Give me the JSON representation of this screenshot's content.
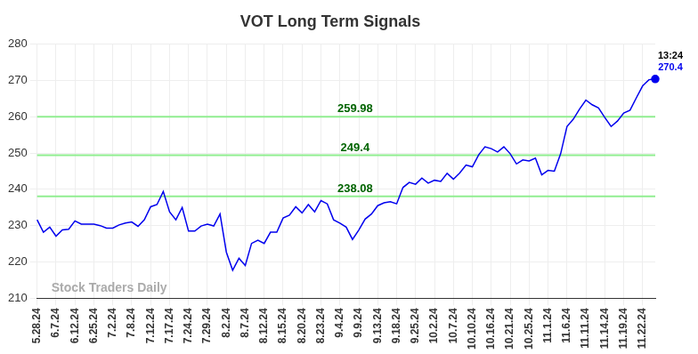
{
  "chart_data": {
    "type": "line",
    "title": "VOT Long Term Signals",
    "categories": [
      "5.28.24",
      null,
      null,
      "6.7.24",
      null,
      null,
      "6.12.24",
      null,
      null,
      "6.25.24",
      null,
      null,
      "7.2.24",
      null,
      null,
      "7.8.24",
      null,
      null,
      "7.12.24",
      null,
      null,
      "7.17.24",
      null,
      null,
      "7.24.24",
      null,
      null,
      "7.29.24",
      null,
      null,
      "8.2.24",
      null,
      null,
      "8.7.24",
      null,
      null,
      "8.12.24",
      null,
      null,
      "8.15.24",
      null,
      null,
      "8.20.24",
      null,
      null,
      "8.23.24",
      null,
      null,
      "9.4.24",
      null,
      null,
      "9.9.24",
      null,
      null,
      "9.13.24",
      null,
      null,
      "9.18.24",
      null,
      null,
      "9.25.24",
      null,
      null,
      "10.2.24",
      null,
      null,
      "10.7.24",
      null,
      null,
      "10.10.24",
      null,
      null,
      "10.16.24",
      null,
      null,
      "10.21.24",
      null,
      null,
      "10.25.24",
      null,
      null,
      "11.1.24",
      null,
      null,
      "11.6.24",
      null,
      null,
      "11.11.24",
      null,
      null,
      "11.14.24",
      null,
      null,
      "11.19.24",
      null,
      null,
      "11.22.24",
      null,
      null
    ],
    "values": [
      231.6,
      228.2,
      229.6,
      227.1,
      228.8,
      229.0,
      231.3,
      230.4,
      230.4,
      230.4,
      230.0,
      229.3,
      229.3,
      230.2,
      230.7,
      231.0,
      229.8,
      231.6,
      235.2,
      235.8,
      239.4,
      233.8,
      231.6,
      235.0,
      228.5,
      228.5,
      229.9,
      230.4,
      229.9,
      233.2,
      222.7,
      217.7,
      221.0,
      219.0,
      225.1,
      226.0,
      225.1,
      228.2,
      228.2,
      232.1,
      232.9,
      235.2,
      233.5,
      235.8,
      233.8,
      236.9,
      236.0,
      231.6,
      230.7,
      229.6,
      226.2,
      228.8,
      231.8,
      233.2,
      235.5,
      236.3,
      236.6,
      236.0,
      240.5,
      241.9,
      241.4,
      243.1,
      241.7,
      242.5,
      242.2,
      244.4,
      242.8,
      244.5,
      246.7,
      246.2,
      249.5,
      251.7,
      251.2,
      250.3,
      251.7,
      249.8,
      247.0,
      248.1,
      247.8,
      248.6,
      244.0,
      245.2,
      245.0,
      249.8,
      257.3,
      259.3,
      262.1,
      264.6,
      263.3,
      262.4,
      259.8,
      257.3,
      258.8,
      261.0,
      261.8,
      265.2,
      268.5,
      270.2,
      270.4
    ],
    "color": "#0000ee",
    "levels": [
      238.08,
      249.4,
      259.98
    ],
    "level_color": "#90ee90",
    "last_time": "13:24",
    "watermark": "Stock Traders Daily",
    "ylim": [
      210,
      280
    ],
    "yticks": [
      210,
      220,
      230,
      240,
      250,
      260,
      270,
      280
    ],
    "grid": true
  }
}
